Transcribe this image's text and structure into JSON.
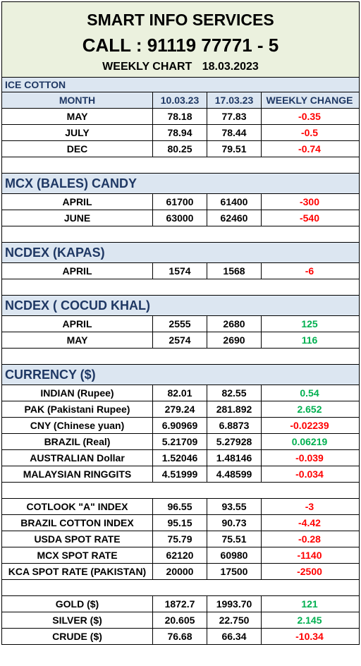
{
  "header": {
    "title": "SMART INFO SERVICES",
    "call": "CALL : 91119 77771 - 5",
    "chart_label": "WEEKLY  CHART",
    "chart_date": "18.03.2023"
  },
  "ice_cotton": {
    "section_label": "ICE COTTON",
    "columns": [
      "MONTH",
      "10.03.23",
      "17.03.23",
      "WEEKLY CHANGE"
    ],
    "rows": [
      {
        "name": "MAY",
        "v1": "78.18",
        "v2": "77.83",
        "chg": "-0.35"
      },
      {
        "name": "JULY",
        "v1": "78.94",
        "v2": "78.44",
        "chg": "-0.5"
      },
      {
        "name": "DEC",
        "v1": "80.25",
        "v2": "79.51",
        "chg": "-0.74"
      }
    ]
  },
  "mcx_candy": {
    "section_label": "MCX (BALES) CANDY",
    "rows": [
      {
        "name": "APRIL",
        "v1": "61700",
        "v2": "61400",
        "chg": "-300"
      },
      {
        "name": "JUNE",
        "v1": "63000",
        "v2": "62460",
        "chg": "-540"
      }
    ]
  },
  "ncdex_kapas": {
    "section_label": "NCDEX (KAPAS)",
    "rows": [
      {
        "name": "APRIL",
        "v1": "1574",
        "v2": "1568",
        "chg": "-6"
      }
    ]
  },
  "ncdex_cocud": {
    "section_label": "NCDEX ( COCUD KHAL)",
    "rows": [
      {
        "name": "APRIL",
        "v1": "2555",
        "v2": "2680",
        "chg": "125"
      },
      {
        "name": "MAY",
        "v1": "2574",
        "v2": "2690",
        "chg": "116"
      }
    ]
  },
  "currency": {
    "section_label": "CURRENCY ($)",
    "rows": [
      {
        "name": "INDIAN (Rupee)",
        "v1": "82.01",
        "v2": "82.55",
        "chg": "0.54"
      },
      {
        "name": "PAK (Pakistani Rupee)",
        "v1": "279.24",
        "v2": "281.892",
        "chg": "2.652"
      },
      {
        "name": "CNY (Chinese yuan)",
        "v1": "6.90969",
        "v2": "6.8873",
        "chg": "-0.02239"
      },
      {
        "name": "BRAZIL (Real)",
        "v1": "5.21709",
        "v2": "5.27928",
        "chg": "0.06219"
      },
      {
        "name": "AUSTRALIAN Dollar",
        "v1": "1.52046",
        "v2": "1.48146",
        "chg": "-0.039"
      },
      {
        "name": "MALAYSIAN RINGGITS",
        "v1": "4.51999",
        "v2": "4.48599",
        "chg": "-0.034"
      }
    ]
  },
  "indices": {
    "rows": [
      {
        "name": "COTLOOK \"A\" INDEX",
        "v1": "96.55",
        "v2": "93.55",
        "chg": "-3"
      },
      {
        "name": "BRAZIL COTTON INDEX",
        "v1": "95.15",
        "v2": "90.73",
        "chg": "-4.42"
      },
      {
        "name": "USDA SPOT RATE",
        "v1": "75.79",
        "v2": "75.51",
        "chg": "-0.28"
      },
      {
        "name": "MCX SPOT RATE",
        "v1": "62120",
        "v2": "60980",
        "chg": "-1140"
      },
      {
        "name": "KCA SPOT RATE (PAKISTAN)",
        "v1": "20000",
        "v2": "17500",
        "chg": "-2500"
      }
    ]
  },
  "commodities": {
    "rows": [
      {
        "name": "GOLD ($)",
        "v1": "1872.7",
        "v2": "1993.70",
        "chg": "121"
      },
      {
        "name": "SILVER ($)",
        "v1": "20.605",
        "v2": "22.750",
        "chg": "2.145"
      },
      {
        "name": "CRUDE ($)",
        "v1": "76.68",
        "v2": "66.34",
        "chg": "-10.34"
      }
    ]
  },
  "colors": {
    "negative": "#ff0000",
    "positive": "#00b050",
    "section_bg": "#dce6f1",
    "header_bg": "#ebf1de"
  }
}
